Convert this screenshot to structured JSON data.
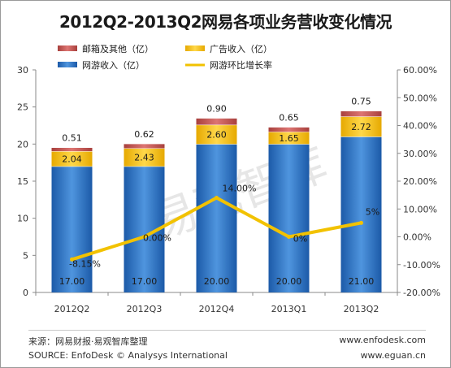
{
  "chart_data": {
    "type": "bar",
    "title": "2012Q2-2013Q2网易各项业务营收变化情况",
    "categories": [
      "2012Q2",
      "2012Q3",
      "2012Q4",
      "2013Q1",
      "2013Q2"
    ],
    "series": [
      {
        "name": "网游收入（亿）",
        "values": [
          17.0,
          17.0,
          20.0,
          20.0,
          21.0
        ],
        "labels": [
          "17.00",
          "17.00",
          "20.00",
          "20.00",
          "21.00"
        ],
        "color": "#2a6fc2",
        "axis": "left",
        "stack": true
      },
      {
        "name": "广告收入（亿）",
        "values": [
          2.04,
          2.43,
          2.6,
          1.65,
          2.72
        ],
        "labels": [
          "2.04",
          "2.43",
          "2.60",
          "1.65",
          "2.72"
        ],
        "color": "#f5b800",
        "axis": "left",
        "stack": true
      },
      {
        "name": "邮箱及其他（亿）",
        "values": [
          0.51,
          0.62,
          0.9,
          0.65,
          0.75
        ],
        "labels": [
          "0.51",
          "0.62",
          "0.90",
          "0.65",
          "0.75"
        ],
        "color": "#c0504d",
        "axis": "left",
        "stack": true
      },
      {
        "name": "网游环比增长率",
        "type": "line",
        "values": [
          -8.15,
          0,
          14.0,
          0,
          5
        ],
        "labels": [
          "-8.15%",
          "0.00%",
          "14.00%",
          "0%",
          "5%"
        ],
        "color": "#f2c200",
        "axis": "right"
      }
    ],
    "y_left": {
      "min": 0,
      "max": 30,
      "ticks": [
        "0",
        "5",
        "10",
        "15",
        "20",
        "25",
        "30"
      ]
    },
    "y_right": {
      "min": -20,
      "max": 60,
      "ticks": [
        "-20.00%",
        "-10.00%",
        "0.00%",
        "10.00%",
        "20.00%",
        "30.00%",
        "40.00%",
        "50.00%",
        "60.00%"
      ]
    },
    "grid": false,
    "legend": "top",
    "watermark": "易观智库"
  },
  "footer": {
    "source_cn": "来源：网易财报·易观智库整理",
    "source_en": "SOURCE: EnfoDesk © Analysys International",
    "site1": "www.enfodesk.com",
    "site2": "www.eguan.cn"
  }
}
